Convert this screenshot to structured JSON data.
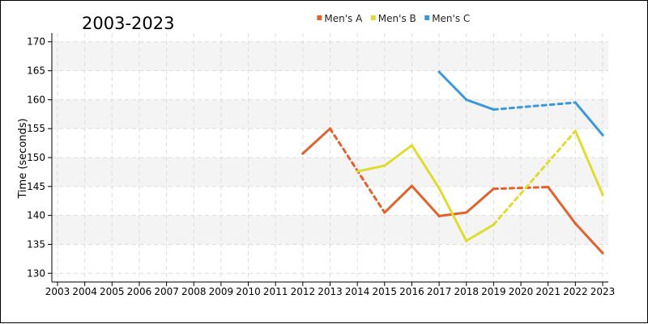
{
  "chart_data": {
    "type": "line",
    "title": "2003-2023",
    "xlabel": "",
    "ylabel": "Time (seconds)",
    "x": [
      2003,
      2004,
      2005,
      2006,
      2007,
      2008,
      2009,
      2010,
      2011,
      2012,
      2013,
      2014,
      2015,
      2016,
      2017,
      2018,
      2019,
      2020,
      2021,
      2022,
      2023
    ],
    "x_ticks": [
      "2003",
      "2004",
      "2005",
      "2006",
      "2007",
      "2008",
      "2009",
      "2010",
      "2011",
      "2012",
      "2013",
      "2014",
      "2015",
      "2016",
      "2017",
      "2018",
      "2019",
      "2020",
      "2021",
      "2022",
      "2023"
    ],
    "xlim": [
      2003,
      2023
    ],
    "ylim": [
      128.5,
      171.5
    ],
    "y_ticks": [
      130,
      135,
      140,
      145,
      150,
      155,
      160,
      165,
      170
    ],
    "y_tick_labels": [
      "130",
      "135",
      "140",
      "145",
      "150",
      "155",
      "160",
      "165",
      "170"
    ],
    "grid": true,
    "legend_position": "top",
    "series": [
      {
        "name": "Men's A",
        "color": "#e0622d",
        "points": [
          {
            "x": 2012,
            "y": 150.7,
            "dash_to_next": false
          },
          {
            "x": 2013,
            "y": 155.0,
            "dash_to_next": true
          },
          {
            "x": 2015,
            "y": 140.5,
            "dash_to_next": false
          },
          {
            "x": 2016,
            "y": 145.1,
            "dash_to_next": false
          },
          {
            "x": 2017,
            "y": 139.9,
            "dash_to_next": false
          },
          {
            "x": 2018,
            "y": 140.5,
            "dash_to_next": false
          },
          {
            "x": 2019,
            "y": 144.6,
            "dash_to_next": true
          },
          {
            "x": 2021,
            "y": 144.9,
            "dash_to_next": false
          },
          {
            "x": 2022,
            "y": 138.6,
            "dash_to_next": false
          },
          {
            "x": 2023,
            "y": 133.5,
            "dash_to_next": false
          }
        ]
      },
      {
        "name": "Men's B",
        "color": "#dedc2f",
        "points": [
          {
            "x": 2014,
            "y": 147.6,
            "dash_to_next": false
          },
          {
            "x": 2015,
            "y": 148.6,
            "dash_to_next": false
          },
          {
            "x": 2016,
            "y": 152.1,
            "dash_to_next": false
          },
          {
            "x": 2017,
            "y": 144.7,
            "dash_to_next": false
          },
          {
            "x": 2018,
            "y": 135.6,
            "dash_to_next": false
          },
          {
            "x": 2019,
            "y": 138.4,
            "dash_to_next": true
          },
          {
            "x": 2022,
            "y": 154.6,
            "dash_to_next": false
          },
          {
            "x": 2023,
            "y": 143.6,
            "dash_to_next": false
          }
        ]
      },
      {
        "name": "Men's C",
        "color": "#3a98db",
        "points": [
          {
            "x": 2017,
            "y": 164.8,
            "dash_to_next": false
          },
          {
            "x": 2018,
            "y": 160.0,
            "dash_to_next": false
          },
          {
            "x": 2019,
            "y": 158.3,
            "dash_to_next": true
          },
          {
            "x": 2022,
            "y": 159.5,
            "dash_to_next": false
          },
          {
            "x": 2023,
            "y": 153.9,
            "dash_to_next": false
          }
        ]
      }
    ]
  }
}
